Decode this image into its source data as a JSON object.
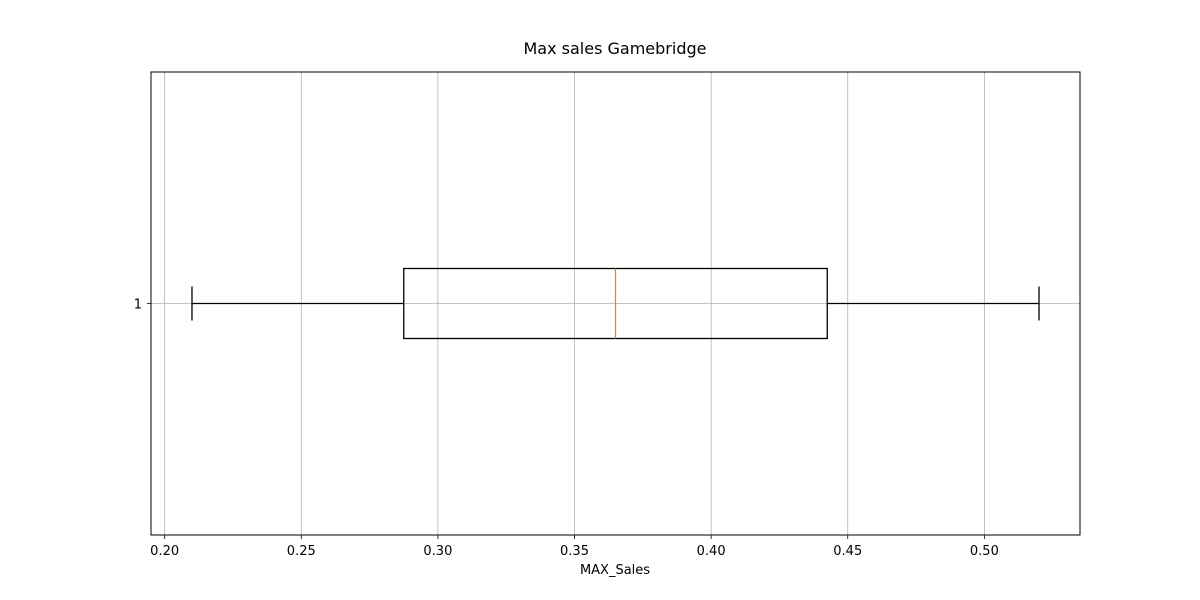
{
  "chart_data": {
    "type": "box",
    "orientation": "horizontal",
    "title": "Max sales Gamebridge",
    "xlabel": "MAX_Sales",
    "ylabel": "",
    "xlim": [
      0.195,
      0.535
    ],
    "x_ticks": [
      "0.20",
      "0.25",
      "0.30",
      "0.35",
      "0.40",
      "0.45",
      "0.50"
    ],
    "y_ticks": [
      "1"
    ],
    "grid": true,
    "series": [
      {
        "category": "1",
        "whisker_low": 0.21,
        "q1": 0.2875,
        "median": 0.365,
        "q3": 0.4425,
        "whisker_high": 0.52
      }
    ],
    "colors": {
      "box": "#000000",
      "median": "#ff7f0e",
      "grid": "#b0b0b0"
    }
  }
}
